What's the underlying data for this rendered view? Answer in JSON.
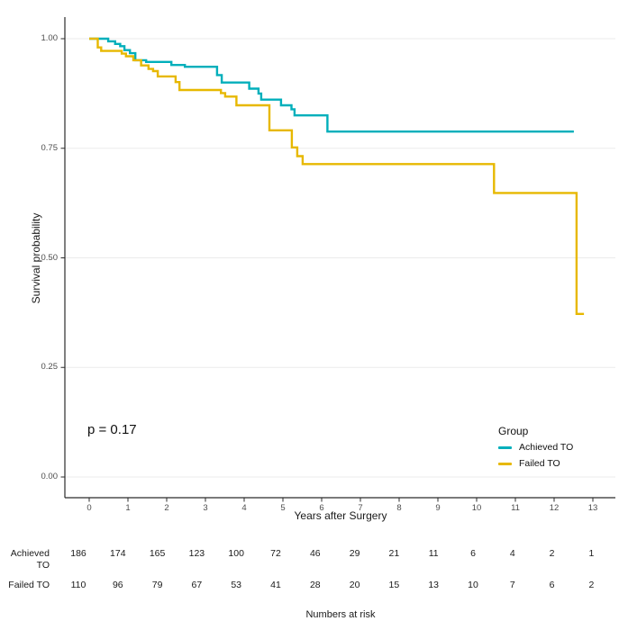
{
  "background": "#ffffff",
  "chart_data": {
    "type": "line",
    "subtype": "kaplan-meier-step",
    "title": "",
    "xlabel": "Years after Surgery",
    "ylabel": "Survival probability",
    "xlim": [
      -0.6,
      13.6
    ],
    "ylim": [
      0.0,
      1.0
    ],
    "grid": "horizontal-major-only",
    "grid_color": "#ebebeb",
    "axis_color": "#2b2b2b",
    "x_ticks": [
      "0",
      "1",
      "2",
      "3",
      "4",
      "5",
      "6",
      "7",
      "8",
      "9",
      "10",
      "11",
      "12",
      "13"
    ],
    "y_ticks": [
      {
        "label": "0.00",
        "value": 0.0
      },
      {
        "label": "0.25",
        "value": 0.25
      },
      {
        "label": "0.50",
        "value": 0.5
      },
      {
        "label": "0.75",
        "value": 0.75
      },
      {
        "label": "1.00",
        "value": 1.0
      }
    ],
    "annotation": {
      "text": "p = 0.17"
    },
    "legend": {
      "title": "Group",
      "position": "inside-bottom-right",
      "entries": [
        {
          "label": "Achieved TO",
          "color": "#00AFBB"
        },
        {
          "label": "Failed TO",
          "color": "#E7B800"
        }
      ]
    },
    "series": [
      {
        "name": "Achieved TO",
        "color": "#00AFBB",
        "steps": [
          [
            0.0,
            1.0
          ],
          [
            0.49,
            0.994
          ],
          [
            0.67,
            0.988
          ],
          [
            0.8,
            0.983
          ],
          [
            0.91,
            0.974
          ],
          [
            1.05,
            0.967
          ],
          [
            1.19,
            0.951
          ],
          [
            1.47,
            0.947
          ],
          [
            2.12,
            0.94
          ],
          [
            2.47,
            0.936
          ],
          [
            3.3,
            0.917
          ],
          [
            3.42,
            0.9
          ],
          [
            4.13,
            0.886
          ],
          [
            4.37,
            0.875
          ],
          [
            4.44,
            0.861
          ],
          [
            4.95,
            0.848
          ],
          [
            5.22,
            0.839
          ],
          [
            5.3,
            0.825
          ],
          [
            6.15,
            0.788
          ],
          [
            12.51,
            0.788
          ]
        ]
      },
      {
        "name": "Failed TO",
        "color": "#E7B800",
        "steps": [
          [
            0.0,
            1.0
          ],
          [
            0.22,
            0.98
          ],
          [
            0.31,
            0.972
          ],
          [
            0.84,
            0.966
          ],
          [
            0.95,
            0.96
          ],
          [
            1.14,
            0.951
          ],
          [
            1.34,
            0.939
          ],
          [
            1.53,
            0.931
          ],
          [
            1.65,
            0.926
          ],
          [
            1.77,
            0.914
          ],
          [
            2.23,
            0.901
          ],
          [
            2.33,
            0.883
          ],
          [
            3.4,
            0.876
          ],
          [
            3.51,
            0.868
          ],
          [
            3.8,
            0.848
          ],
          [
            4.65,
            0.791
          ],
          [
            5.23,
            0.752
          ],
          [
            5.37,
            0.732
          ],
          [
            5.51,
            0.714
          ],
          [
            10.45,
            0.648
          ],
          [
            12.58,
            0.372
          ],
          [
            12.77,
            0.372
          ]
        ]
      }
    ],
    "risk_table": {
      "caption": "Numbers at risk",
      "rows": [
        {
          "label": "Achieved TO",
          "counts": [
            186,
            174,
            165,
            123,
            100,
            72,
            46,
            29,
            21,
            11,
            6,
            4,
            2,
            1
          ]
        },
        {
          "label": "Failed TO",
          "counts": [
            110,
            96,
            79,
            67,
            53,
            41,
            28,
            20,
            15,
            13,
            10,
            7,
            6,
            2
          ]
        }
      ]
    }
  }
}
